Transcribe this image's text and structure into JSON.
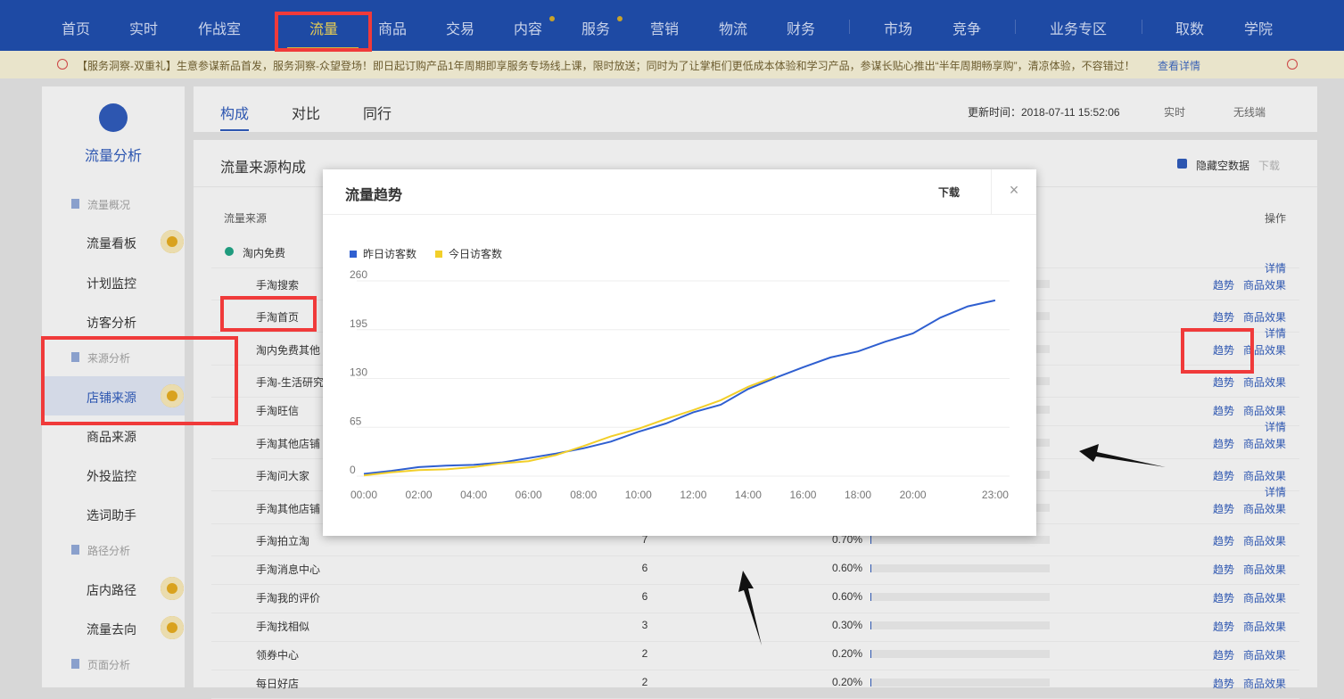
{
  "nav": {
    "items": [
      "首页",
      "实时",
      "作战室",
      "流量",
      "商品",
      "交易",
      "内容",
      "服务",
      "营销",
      "物流",
      "财务",
      "市场",
      "竞争",
      "业务专区",
      "取数",
      "学院"
    ]
  },
  "notice": {
    "text": "【服务洞察-双重礼】生意参谋新品首发，服务洞察-众望登场！即日起订购产品1年周期即享服务专场线上课，限时放送；同时为了让掌柜们更低成本体验和学习产品，参谋长贴心推出“半年周期畅享购”，清凉体验，不容错过！",
    "link": "查看详情"
  },
  "sidebar": {
    "title": "流量分析",
    "groups": [
      {
        "label": "流量概况",
        "items": [
          "流量看板",
          "计划监控",
          "访客分析"
        ]
      },
      {
        "label": "来源分析",
        "items": [
          "店铺来源",
          "商品来源",
          "外投监控",
          "选词助手"
        ]
      },
      {
        "label": "路径分析",
        "items": [
          "店内路径",
          "流量去向"
        ]
      },
      {
        "label": "页面分析",
        "items": []
      }
    ]
  },
  "tabs": {
    "items": [
      "构成",
      "对比",
      "同行"
    ],
    "update_time": "更新时间：2018-07-11 15:52:06",
    "period": "实时",
    "device": "无线端"
  },
  "panel": {
    "title": "流量来源构成",
    "hide_empty": "隐藏空数据",
    "download": "下载"
  },
  "table": {
    "headers": [
      "流量来源",
      "操作"
    ],
    "rows": [
      {
        "name": "淘内免费"
      },
      {
        "name": "手淘搜索",
        "actions": [
          "详情",
          "趋势",
          "商品效果"
        ]
      },
      {
        "name": "手淘首页",
        "actions": [
          "趋势",
          "商品效果"
        ]
      },
      {
        "name": "淘内免费其他",
        "actions": [
          "详情",
          "趋势",
          "商品效果"
        ]
      },
      {
        "name": "手淘-生活研究",
        "actions": [
          "趋势",
          "商品效果"
        ]
      },
      {
        "name": "手淘旺信",
        "actions": [
          "趋势",
          "商品效果"
        ]
      },
      {
        "name": "手淘其他店铺",
        "actions": [
          "详情",
          "趋势",
          "商品效果"
        ]
      },
      {
        "name": "手淘问大家",
        "actions": [
          "趋势",
          "商品效果"
        ]
      },
      {
        "name": "手淘其他店铺",
        "actions": [
          "详情",
          "趋势",
          "商品效果"
        ]
      },
      {
        "name": "手淘拍立淘",
        "visitors": 7,
        "share": 0.7,
        "share_label": "0.70%",
        "actions": [
          "趋势",
          "商品效果"
        ]
      },
      {
        "name": "手淘消息中心",
        "visitors": 6,
        "share": 0.6,
        "share_label": "0.60%",
        "actions": [
          "趋势",
          "商品效果"
        ]
      },
      {
        "name": "手淘我的评价",
        "visitors": 6,
        "share": 0.6,
        "share_label": "0.60%",
        "actions": [
          "趋势",
          "商品效果"
        ]
      },
      {
        "name": "手淘找相似",
        "visitors": 3,
        "share": 0.3,
        "share_label": "0.30%",
        "actions": [
          "趋势",
          "商品效果"
        ]
      },
      {
        "name": "领券中心",
        "visitors": 2,
        "share": 0.2,
        "share_label": "0.20%",
        "actions": [
          "趋势",
          "商品效果"
        ]
      },
      {
        "name": "每日好店",
        "visitors": 2,
        "share": 0.2,
        "share_label": "0.20%",
        "actions": [
          "趋势",
          "商品效果"
        ]
      }
    ]
  },
  "modal": {
    "title": "流量趋势",
    "download": "下载"
  },
  "chart_data": {
    "type": "line",
    "categories": [
      "00:00",
      null,
      "02:00",
      null,
      "04:00",
      null,
      "06:00",
      null,
      "08:00",
      null,
      "10:00",
      null,
      "12:00",
      null,
      "14:00",
      null,
      "16:00",
      null,
      "18:00",
      null,
      "20:00",
      null,
      null,
      "23:00"
    ],
    "series": [
      {
        "name": "昨日访客数",
        "color": "#2f5fd0",
        "values": [
          3,
          7,
          12,
          14,
          15,
          18,
          24,
          30,
          37,
          46,
          59,
          70,
          85,
          95,
          116,
          131,
          145,
          158,
          166,
          179,
          190,
          211,
          226,
          234
        ]
      },
      {
        "name": "今日访客数",
        "color": "#f2cf2a",
        "values": [
          1,
          5,
          8,
          9,
          12,
          17,
          20,
          28,
          40,
          53,
          63,
          76,
          88,
          101,
          119,
          133,
          null,
          null,
          null,
          null,
          null,
          null,
          null,
          null
        ]
      }
    ],
    "ylim": [
      0,
      260
    ],
    "yticks": [
      0,
      65,
      130,
      195,
      260
    ],
    "grid": true,
    "legend": "top-left"
  }
}
